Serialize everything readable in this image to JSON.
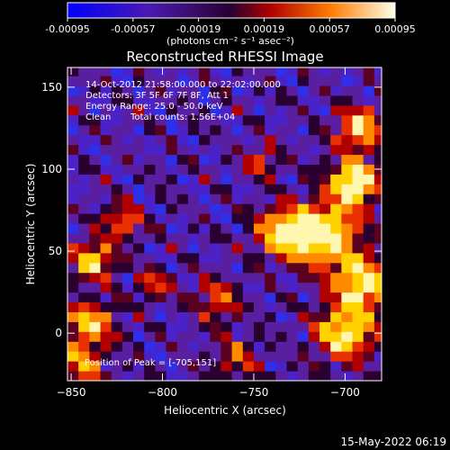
{
  "chart_data": {
    "type": "heatmap",
    "title": "Reconstructed RHESSI Image",
    "xlabel": "Heliocentric X (arcsec)",
    "ylabel": "Heliocentric Y (arcsec)",
    "xlim": [
      -852,
      -680
    ],
    "ylim": [
      -29,
      162
    ],
    "x_ticks": [
      -850,
      -800,
      -750,
      -700
    ],
    "y_ticks": [
      0,
      50,
      100,
      150
    ],
    "colorbar": {
      "ticks": [
        "-0.00095",
        "-0.00057",
        "-0.00019",
        "0.00019",
        "0.00057",
        "0.00095"
      ],
      "unit_label": "(photons cm⁻² s⁻¹ asec⁻²)",
      "range": [
        -0.00095,
        0.00095
      ]
    },
    "info": {
      "time_range": "14-Oct-2012 21:58:00.000 to 22:02:00.000",
      "detectors": "Detectors: 3F 5F 6F 7F 8F, Att 1",
      "energy": "Energy Range: 25.0 - 50.0 keV",
      "method": "Clean",
      "counts": "Total counts: 1.56E+04"
    },
    "peak_label": "Position of Peak = [-705,151]",
    "colors": {
      "negative": "#0000ff",
      "mid": "#6a1fb0",
      "positive_low": "#b00000",
      "positive_high": "#ffff80"
    }
  },
  "footer": {
    "date": "15-May-2022 06:19"
  }
}
